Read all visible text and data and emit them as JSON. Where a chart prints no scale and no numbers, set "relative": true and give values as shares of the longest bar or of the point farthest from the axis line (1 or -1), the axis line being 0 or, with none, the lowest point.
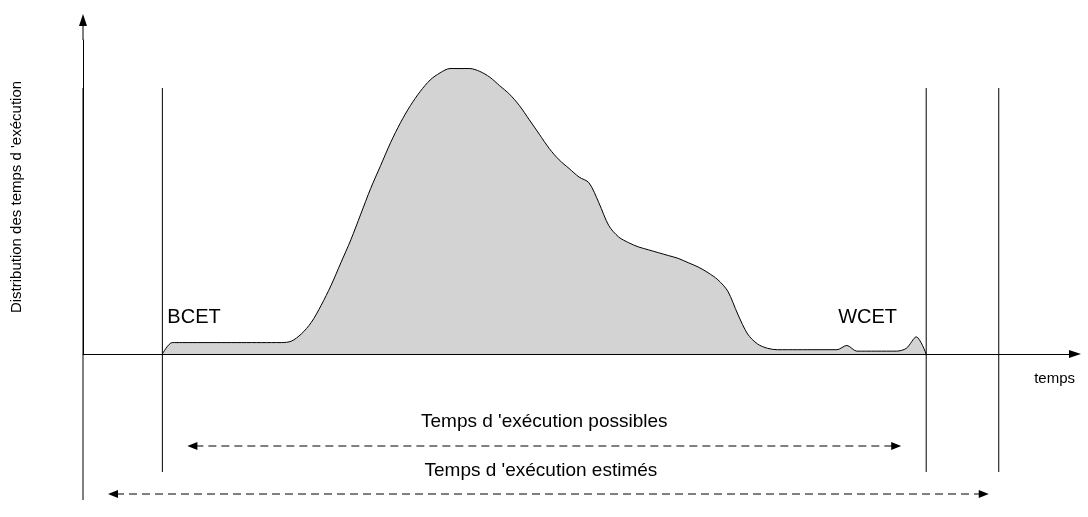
{
  "chart_data": {
    "type": "area",
    "relative": true,
    "ylabel": "Distribution des temps d 'exécution",
    "xlabel": "temps",
    "color": "#d3d3d3",
    "grid": false,
    "categories": [
      null,
      null,
      null,
      null,
      null,
      null,
      null,
      null,
      null,
      null,
      null,
      null,
      null,
      null,
      null,
      null,
      null,
      null,
      null,
      null,
      null,
      null,
      null,
      null,
      null,
      null,
      null,
      null,
      null,
      null,
      null,
      null,
      null,
      null,
      null,
      null,
      null,
      null,
      null,
      null,
      null,
      null,
      null,
      null,
      null,
      null,
      null,
      null,
      null,
      null,
      null,
      null,
      null,
      null,
      null,
      null,
      null,
      null,
      null,
      null,
      null,
      null,
      null,
      null,
      null,
      null,
      null,
      null,
      null,
      null,
      null,
      null,
      null,
      null,
      null,
      null,
      null,
      null,
      null,
      null,
      null,
      null,
      null,
      null,
      null,
      null,
      null,
      null,
      null,
      null,
      null,
      null,
      null,
      null,
      null,
      null,
      null,
      null,
      null,
      null,
      null
    ],
    "values": [
      null,
      null,
      null,
      null,
      null,
      null,
      null,
      null,
      0,
      0.04,
      0.04,
      0.04,
      0.04,
      0.04,
      0.04,
      0.04,
      0.04,
      0.04,
      0.04,
      0.04,
      0.04,
      0.045,
      0.07,
      0.11,
      0.17,
      0.24,
      0.32,
      0.4,
      0.49,
      0.58,
      0.66,
      0.74,
      0.81,
      0.87,
      0.92,
      0.96,
      0.985,
      1,
      1,
      1,
      0.99,
      0.97,
      0.94,
      0.91,
      0.87,
      0.82,
      0.77,
      0.72,
      0.68,
      0.65,
      0.62,
      0.6,
      0.53,
      0.45,
      0.41,
      0.39,
      0.375,
      0.365,
      0.355,
      0.345,
      0.335,
      0.32,
      0.305,
      0.285,
      0.26,
      0.22,
      0.14,
      0.07,
      0.035,
      0.02,
      0.015,
      0.015,
      0.015,
      0.015,
      0.015,
      0.015,
      0.015,
      0.03,
      0.01,
      0.01,
      0.01,
      0.01,
      0.01,
      0.02,
      0.06,
      0,
      null,
      null,
      null,
      null,
      null,
      null,
      null,
      null,
      null,
      null,
      null,
      null,
      null,
      null,
      null
    ],
    "annotations": [
      "BCET",
      "WCET",
      "Temps d 'exécution possibles",
      "Temps d 'exécution estimés"
    ]
  }
}
